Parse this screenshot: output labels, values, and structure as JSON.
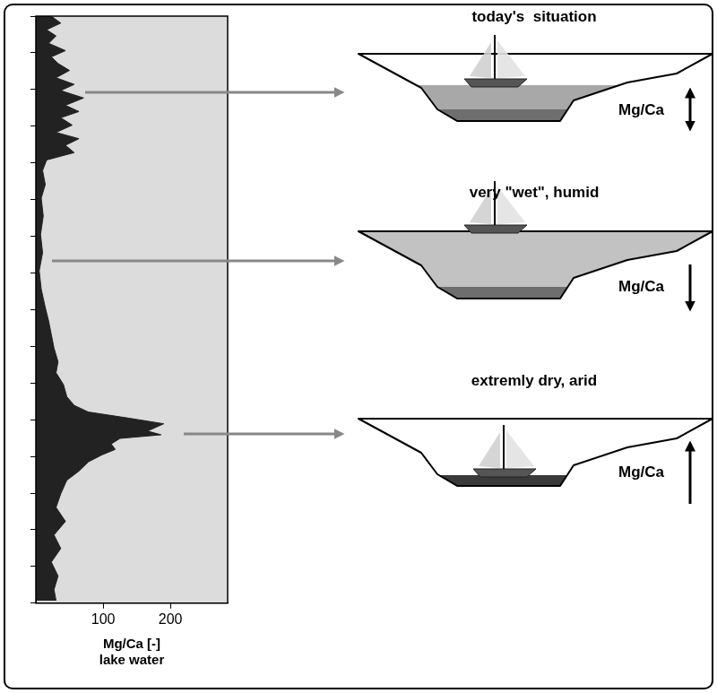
{
  "chart_data": {
    "type": "area",
    "x_label": [
      "Mg/Ca [-]",
      "lake water"
    ],
    "x": [
      23,
      37,
      16,
      30,
      19,
      44,
      23,
      33,
      50,
      30,
      57,
      37,
      71,
      44,
      64,
      37,
      54,
      30,
      64,
      44,
      57,
      16,
      10,
      14,
      8,
      11,
      7,
      10,
      5,
      8,
      14,
      19,
      23,
      27,
      33,
      30,
      41,
      46,
      57,
      78,
      139,
      190,
      178,
      166,
      186,
      125,
      112,
      118,
      98,
      78,
      64,
      46,
      37,
      30,
      44,
      27,
      37,
      23,
      33,
      27,
      30
    ],
    "y": [
      16.0,
      15.81,
      15.63,
      15.46,
      15.26,
      15.06,
      14.89,
      14.71,
      14.52,
      14.32,
      14.14,
      13.97,
      13.77,
      13.57,
      13.4,
      13.23,
      13.03,
      12.83,
      12.66,
      12.48,
      12.28,
      12.08,
      11.79,
      11.41,
      11.04,
      10.55,
      10.05,
      9.55,
      9.06,
      8.56,
      8.06,
      7.69,
      7.32,
      6.95,
      6.58,
      6.28,
      5.96,
      5.63,
      5.39,
      5.21,
      5.04,
      4.89,
      4.79,
      4.69,
      4.59,
      4.49,
      4.34,
      4.19,
      4.04,
      3.85,
      3.6,
      3.35,
      2.98,
      2.61,
      2.23,
      1.86,
      1.49,
      1.12,
      0.74,
      0.37,
      0.07
    ],
    "xlim": [
      0,
      285
    ],
    "xticks": [
      100,
      200
    ],
    "ylim": [
      0,
      16
    ],
    "yticks": [
      0,
      1,
      2,
      3,
      4,
      5,
      6,
      7,
      8,
      9,
      10,
      11,
      12,
      13,
      14,
      15,
      16
    ],
    "tick_labels": "x",
    "grid": false,
    "color": "#222222"
  },
  "diagram": {
    "panels": [
      {
        "title": "today's  situation",
        "label": "Mg/Ca",
        "arrow": "both"
      },
      {
        "title": "very \"wet\", humid",
        "label": "Mg/Ca",
        "arrow": "down"
      },
      {
        "title": "extremly dry, arid",
        "label": "Mg/Ca",
        "arrow": "up"
      }
    ]
  }
}
